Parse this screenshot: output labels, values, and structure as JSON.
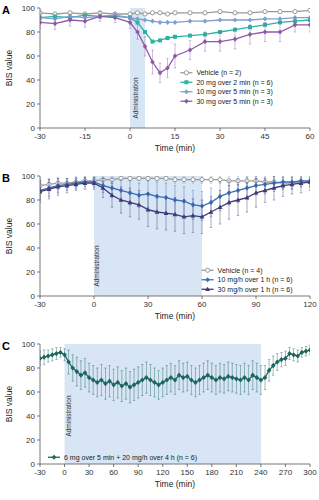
{
  "chart_data": [
    {
      "type": "line",
      "title": "A",
      "xlabel": "Time (min)",
      "ylabel": "BIS value",
      "xlim": [
        -30,
        60
      ],
      "xticks": [
        -30,
        -15,
        0,
        15,
        30,
        45,
        60
      ],
      "ylim": [
        0,
        100
      ],
      "yticks": [
        0,
        20,
        40,
        60,
        80,
        100
      ],
      "grid": false,
      "legend": "center right",
      "administration_period": [
        0,
        5
      ],
      "annotations": [
        {
          "text": "Administration",
          "x": 2.5,
          "y": 25
        }
      ],
      "x": [
        -30,
        -25,
        -20,
        -15,
        -10,
        -5,
        0,
        2.5,
        5,
        7.5,
        10,
        12.5,
        15,
        20,
        25,
        30,
        35,
        40,
        45,
        50,
        55,
        60
      ],
      "series": [
        {
          "name": "Vehicle (n = 2)",
          "color": "#9a9a9a",
          "marker": "circle-open",
          "line_style": "solid",
          "values": [
            96,
            95,
            96,
            95,
            96,
            95,
            95,
            96,
            95,
            96,
            96,
            95,
            96,
            96,
            96,
            97,
            96,
            96,
            97,
            97,
            97,
            98
          ]
        },
        {
          "name": "20 mg over 2 min (n = 6)",
          "color": "#2bb3a0",
          "marker": "square",
          "line_style": "solid",
          "values": [
            92,
            93,
            92,
            94,
            93,
            93,
            92,
            88,
            80,
            72,
            73,
            75,
            76,
            77,
            78,
            80,
            82,
            84,
            86,
            88,
            89,
            90
          ]
        },
        {
          "name": "10 mg over 5 min (n = 3)",
          "color": "#7f9fcf",
          "marker": "diamond",
          "line_style": "solid",
          "values": [
            92,
            91,
            93,
            92,
            93,
            94,
            92,
            91,
            90,
            89,
            88,
            88,
            88,
            89,
            89,
            90,
            90,
            90,
            91,
            91,
            92,
            92
          ]
        },
        {
          "name": "30 mg over 5 min (n = 3)",
          "color": "#8e5aa8",
          "marker": "diamond",
          "line_style": "solid",
          "values": [
            88,
            87,
            90,
            89,
            93,
            92,
            88,
            80,
            68,
            55,
            46,
            50,
            60,
            65,
            72,
            72,
            74,
            78,
            80,
            80,
            86,
            86
          ],
          "errors": [
            5,
            5,
            5,
            5,
            4,
            4,
            5,
            6,
            8,
            10,
            8,
            8,
            10,
            8,
            8,
            8,
            8,
            8,
            8,
            8,
            6,
            6
          ]
        }
      ]
    },
    {
      "type": "line",
      "title": "B",
      "xlabel": "Time (min)",
      "ylabel": "BIS value",
      "xlim": [
        -30,
        120
      ],
      "xticks": [
        -30,
        0,
        30,
        60,
        90,
        120
      ],
      "ylim": [
        0,
        100
      ],
      "yticks": [
        0,
        20,
        40,
        60,
        80,
        100
      ],
      "grid": false,
      "legend": "lower right",
      "administration_period": [
        0,
        60
      ],
      "annotations": [
        {
          "text": "Administration",
          "x": 3,
          "y": 25
        }
      ],
      "x": [
        -30,
        -25,
        -20,
        -15,
        -10,
        -5,
        0,
        5,
        10,
        15,
        20,
        25,
        30,
        35,
        40,
        45,
        50,
        55,
        60,
        65,
        70,
        75,
        80,
        85,
        90,
        95,
        100,
        105,
        110,
        115,
        120
      ],
      "series": [
        {
          "name": "Vehicle (n = 4)",
          "color": "#9a9a9a",
          "marker": "circle-open",
          "line_style": "solid",
          "values": [
            92,
            93,
            94,
            94,
            95,
            96,
            96,
            97,
            97,
            98,
            98,
            98,
            98,
            98,
            98,
            97,
            97,
            97,
            97,
            97,
            97,
            96,
            96,
            96,
            96,
            95,
            95,
            94,
            94,
            95,
            95
          ],
          "errors": [
            6,
            5,
            5,
            4,
            4,
            3,
            3,
            3,
            3,
            2,
            2,
            2,
            2,
            2,
            2,
            3,
            3,
            3,
            3,
            3,
            3,
            4,
            4,
            4,
            4,
            4,
            5,
            5,
            5,
            4,
            4
          ]
        },
        {
          "name": "10 mg/h over 1 h (n = 6)",
          "color": "#3d6fb6",
          "marker": "diamond",
          "line_style": "solid",
          "values": [
            88,
            90,
            92,
            93,
            94,
            95,
            95,
            92,
            90,
            88,
            86,
            84,
            85,
            83,
            82,
            80,
            79,
            76,
            75,
            78,
            83,
            86,
            88,
            90,
            92,
            93,
            94,
            95,
            95,
            96,
            96
          ],
          "errors": [
            8,
            7,
            6,
            5,
            5,
            4,
            4,
            6,
            8,
            9,
            10,
            10,
            11,
            12,
            12,
            12,
            12,
            12,
            12,
            12,
            12,
            10,
            10,
            9,
            8,
            8,
            7,
            6,
            6,
            5,
            5
          ]
        },
        {
          "name": "30 mg/h over 1 h (n = 6)",
          "color": "#3f3a78",
          "marker": "triangle",
          "line_style": "solid",
          "values": [
            87,
            89,
            91,
            92,
            93,
            94,
            94,
            90,
            84,
            80,
            78,
            76,
            72,
            70,
            69,
            68,
            66,
            67,
            66,
            70,
            74,
            78,
            80,
            82,
            86,
            88,
            90,
            92,
            93,
            94,
            95
          ],
          "errors": [
            9,
            8,
            7,
            6,
            5,
            5,
            5,
            8,
            10,
            11,
            12,
            12,
            14,
            14,
            14,
            14,
            14,
            14,
            14,
            13,
            14,
            14,
            13,
            12,
            12,
            10,
            10,
            9,
            8,
            8,
            7
          ]
        }
      ]
    },
    {
      "type": "line",
      "title": "C",
      "xlabel": "Time (min)",
      "ylabel": "BIS value",
      "xlim": [
        -30,
        300
      ],
      "xticks": [
        -30,
        0,
        30,
        60,
        90,
        120,
        150,
        180,
        210,
        240,
        270,
        300
      ],
      "ylim": [
        0,
        100
      ],
      "yticks": [
        0,
        20,
        40,
        60,
        80,
        100
      ],
      "grid": false,
      "legend": "lower left",
      "administration_period": [
        0,
        240
      ],
      "annotations": [
        {
          "text": "Administration",
          "x": 8,
          "y": 40
        }
      ],
      "x": [
        -30,
        -25,
        -20,
        -15,
        -10,
        -5,
        0,
        5,
        10,
        15,
        20,
        25,
        30,
        35,
        40,
        45,
        50,
        55,
        60,
        65,
        70,
        75,
        80,
        85,
        90,
        95,
        100,
        105,
        110,
        115,
        120,
        125,
        130,
        135,
        140,
        145,
        150,
        155,
        160,
        165,
        170,
        175,
        180,
        185,
        190,
        195,
        200,
        205,
        210,
        215,
        220,
        225,
        230,
        235,
        240,
        245,
        250,
        255,
        260,
        265,
        270,
        275,
        280,
        285,
        290,
        295,
        300
      ],
      "series": [
        {
          "name": "6 mg over 5 min + 20 mg/h over 4 h (n = 6)",
          "color": "#1d6660",
          "marker": "diamond",
          "line_style": "solid",
          "values": [
            88,
            89,
            90,
            91,
            92,
            93,
            91,
            85,
            80,
            77,
            74,
            76,
            72,
            70,
            68,
            70,
            67,
            69,
            66,
            68,
            65,
            67,
            64,
            66,
            68,
            70,
            72,
            70,
            68,
            66,
            68,
            70,
            72,
            70,
            74,
            72,
            73,
            70,
            68,
            70,
            72,
            74,
            72,
            70,
            72,
            71,
            73,
            72,
            71,
            70,
            72,
            70,
            74,
            72,
            70,
            72,
            78,
            82,
            85,
            87,
            88,
            92,
            91,
            90,
            93,
            94,
            95
          ],
          "errors": [
            6,
            6,
            5,
            5,
            5,
            4,
            5,
            10,
            11,
            12,
            12,
            12,
            12,
            12,
            12,
            13,
            13,
            13,
            13,
            13,
            13,
            13,
            13,
            13,
            13,
            13,
            13,
            13,
            12,
            12,
            12,
            12,
            12,
            12,
            12,
            12,
            12,
            12,
            12,
            12,
            12,
            12,
            12,
            12,
            12,
            12,
            12,
            12,
            12,
            12,
            12,
            12,
            12,
            12,
            12,
            10,
            9,
            8,
            7,
            6,
            6,
            5,
            5,
            5,
            4,
            4,
            4
          ]
        }
      ]
    }
  ]
}
